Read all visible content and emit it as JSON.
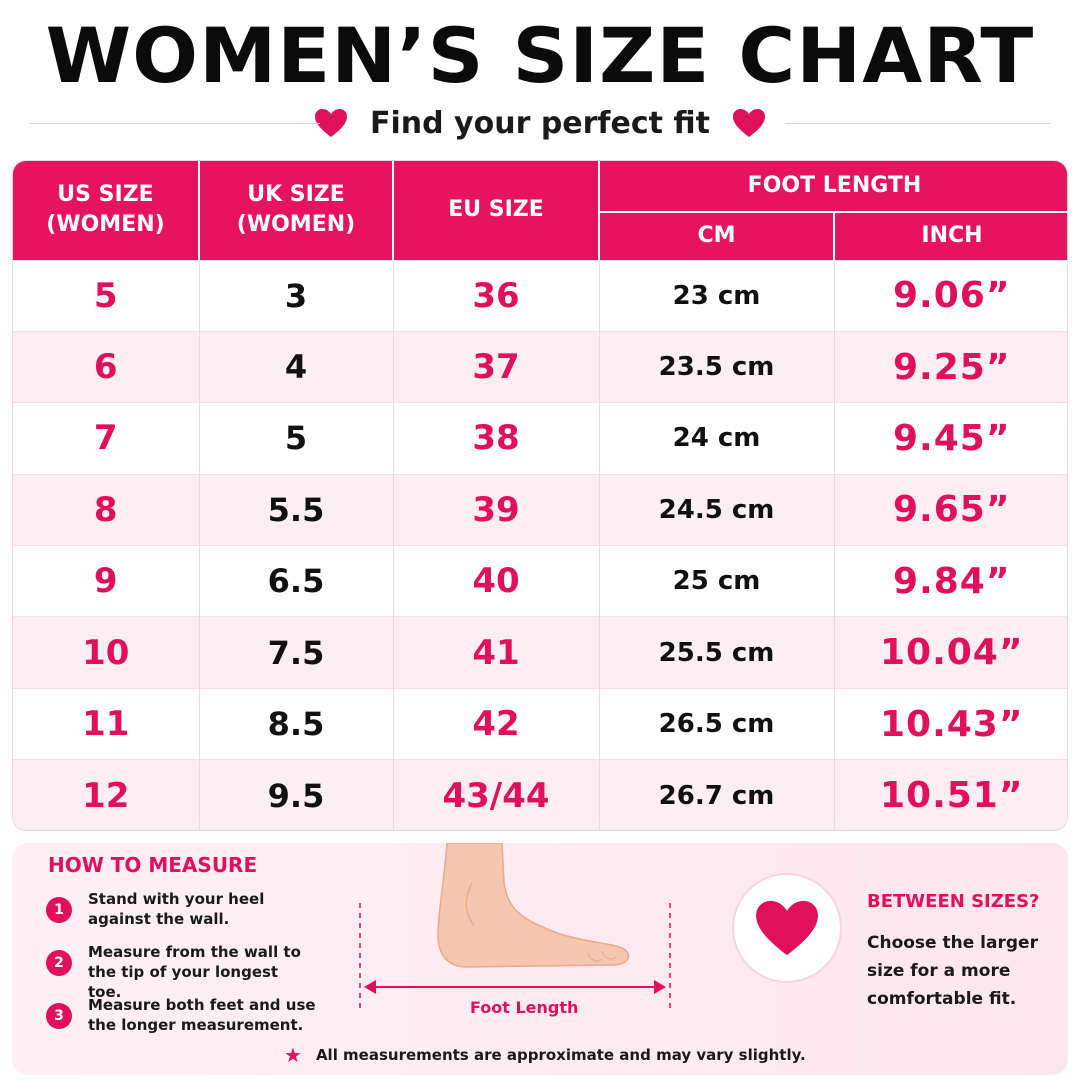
{
  "header": {
    "title": "WOMEN’S SIZE CHART",
    "subtitle": "Find your perfect fit"
  },
  "colors": {
    "accent": "#e6135f",
    "accent_text": "#e0105a",
    "row_alt": "#fdeef3"
  },
  "table": {
    "headers": {
      "us": "US SIZE\n(WOMEN)",
      "uk": "UK SIZE\n(WOMEN)",
      "eu": "EU SIZE",
      "foot_length": "FOOT LENGTH",
      "cm": "CM",
      "inch": "INCH"
    },
    "rows": [
      {
        "us": "5",
        "uk": "3",
        "eu": "36",
        "cm": "23 cm",
        "inch": "9.06”"
      },
      {
        "us": "6",
        "uk": "4",
        "eu": "37",
        "cm": "23.5 cm",
        "inch": "9.25”"
      },
      {
        "us": "7",
        "uk": "5",
        "eu": "38",
        "cm": "24 cm",
        "inch": "9.45”"
      },
      {
        "us": "8",
        "uk": "5.5",
        "eu": "39",
        "cm": "24.5 cm",
        "inch": "9.65”"
      },
      {
        "us": "9",
        "uk": "6.5",
        "eu": "40",
        "cm": "25 cm",
        "inch": "9.84”"
      },
      {
        "us": "10",
        "uk": "7.5",
        "eu": "41",
        "cm": "25.5 cm",
        "inch": "10.04”"
      },
      {
        "us": "11",
        "uk": "8.5",
        "eu": "42",
        "cm": "26.5 cm",
        "inch": "10.43”"
      },
      {
        "us": "12",
        "uk": "9.5",
        "eu": "43/44",
        "cm": "26.7 cm",
        "inch": "10.51”"
      }
    ]
  },
  "how_to_measure": {
    "title": "HOW TO MEASURE",
    "steps": [
      {
        "num": "1",
        "text": "Stand with your heel against the wall."
      },
      {
        "num": "2",
        "text": "Measure from the wall to the tip of your longest toe."
      },
      {
        "num": "3",
        "text": "Measure both feet and use the longer measurement."
      }
    ],
    "foot_label": "Foot Length"
  },
  "between_sizes": {
    "title": "BETWEEN SIZES?",
    "text": "Choose the larger size for a more comfortable fit."
  },
  "note": "All measurements are approximate and may vary slightly.",
  "icons": [
    "heart-icon",
    "foot-illustration",
    "star-icon"
  ]
}
